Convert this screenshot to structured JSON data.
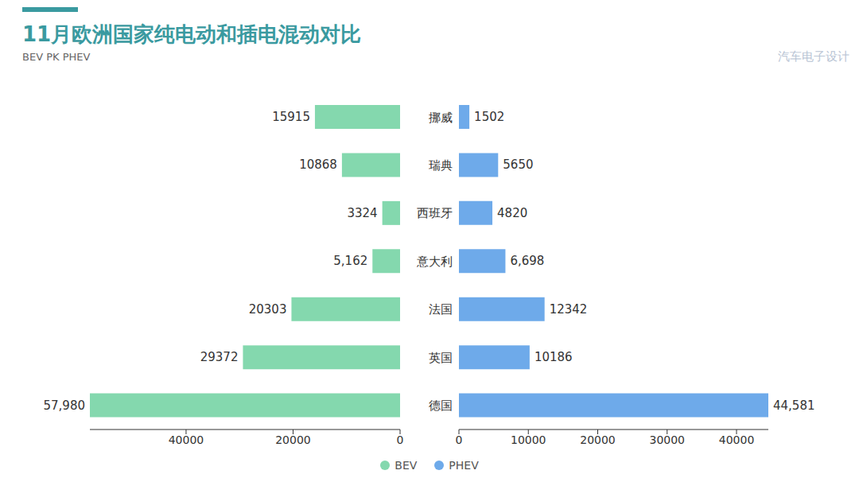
{
  "chart_data": [
    {
      "type": "bar",
      "title": "11月欧洲国家纯电动和插电混动对比",
      "subtitle": "BEV PK PHEV",
      "annotation": "汽车电子设计",
      "orientation": "horizontal",
      "legend": "bottom",
      "data_labels": true,
      "categories": [
        "挪威",
        "瑞典",
        "西班牙",
        "意大利",
        "法国",
        "英国",
        "德国"
      ],
      "series": [
        {
          "name": "BEV",
          "color": "#84d8ae",
          "values": [
            15915,
            10868,
            3324,
            5162,
            20303,
            29372,
            57980
          ],
          "value_labels": [
            "15915",
            "10868",
            "3324",
            "5,162",
            "20303",
            "29372",
            "57,980"
          ]
        }
      ],
      "xlim": [
        0,
        57980
      ],
      "xticks": [
        0,
        20000,
        40000
      ]
    },
    {
      "type": "bar",
      "orientation": "horizontal",
      "data_labels": true,
      "categories": [
        "挪威",
        "瑞典",
        "西班牙",
        "意大利",
        "法国",
        "英国",
        "德国"
      ],
      "series": [
        {
          "name": "PHEV",
          "color": "#6eaaea",
          "values": [
            1502,
            5650,
            4820,
            6698,
            12342,
            10186,
            44581
          ],
          "value_labels": [
            "1502",
            "5650",
            "4820",
            "6,698",
            "12342",
            "10186",
            "44,581"
          ]
        }
      ],
      "xlim": [
        0,
        44581
      ],
      "xticks": [
        0,
        10000,
        20000,
        30000,
        40000
      ]
    }
  ]
}
